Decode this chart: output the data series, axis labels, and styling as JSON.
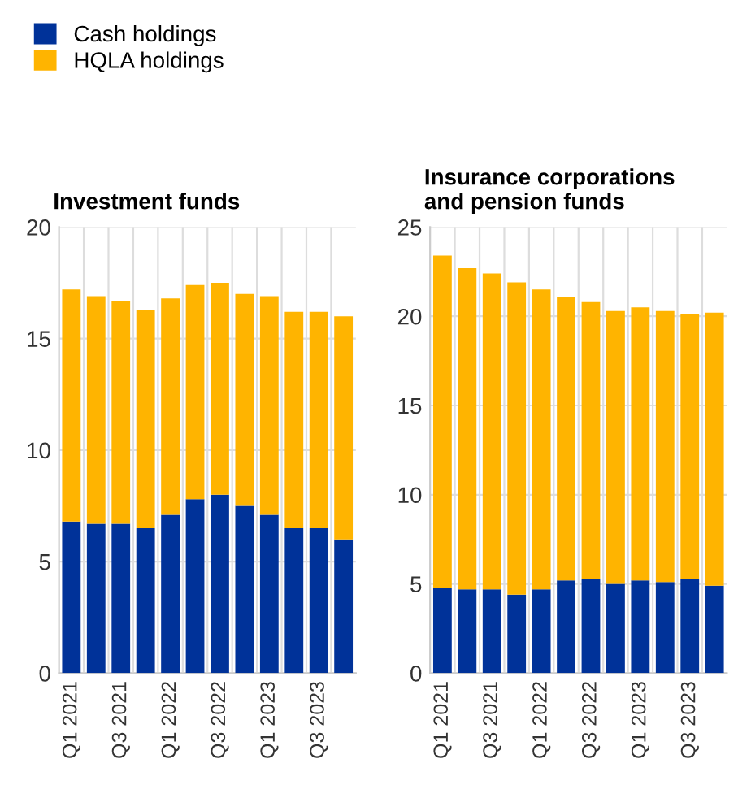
{
  "chart_data": [
    {
      "type": "bar",
      "title": "Investment funds",
      "stacked": true,
      "legend": "top left",
      "grid": true,
      "categories": [
        "Q1 2021",
        null,
        "Q3 2021",
        null,
        "Q1 2022",
        null,
        "Q3 2022",
        null,
        "Q1 2023",
        null,
        "Q3 2023",
        null
      ],
      "series": [
        {
          "name": "Cash holdings",
          "color": "#003299",
          "values": [
            6.8,
            6.7,
            6.7,
            6.5,
            7.1,
            7.8,
            8.0,
            7.5,
            7.1,
            6.5,
            6.5,
            6.0
          ]
        },
        {
          "name": "HQLA holdings",
          "color": "#ffb400",
          "values": [
            10.4,
            10.2,
            10.0,
            9.8,
            9.7,
            9.6,
            9.5,
            9.5,
            9.8,
            9.7,
            9.7,
            10.0
          ]
        }
      ],
      "ylim": [
        0,
        20
      ],
      "yticks": [
        0,
        5,
        10,
        15,
        20
      ]
    },
    {
      "type": "bar",
      "title": "Insurance corporations\nand pension funds",
      "stacked": true,
      "grid": true,
      "categories": [
        "Q1 2021",
        null,
        "Q3 2021",
        null,
        "Q1 2022",
        null,
        "Q3 2022",
        null,
        "Q1 2023",
        null,
        "Q3 2023",
        null
      ],
      "series": [
        {
          "name": "Cash holdings",
          "color": "#003299",
          "values": [
            4.8,
            4.7,
            4.7,
            4.4,
            4.7,
            5.2,
            5.3,
            5.0,
            5.2,
            5.1,
            5.3,
            4.9
          ]
        },
        {
          "name": "HQLA holdings",
          "color": "#ffb400",
          "values": [
            18.6,
            18.0,
            17.7,
            17.5,
            16.8,
            15.9,
            15.5,
            15.3,
            15.3,
            15.2,
            14.8,
            15.3
          ]
        }
      ],
      "ylim": [
        0,
        25
      ],
      "yticks": [
        0,
        5,
        10,
        15,
        20,
        25
      ]
    }
  ]
}
